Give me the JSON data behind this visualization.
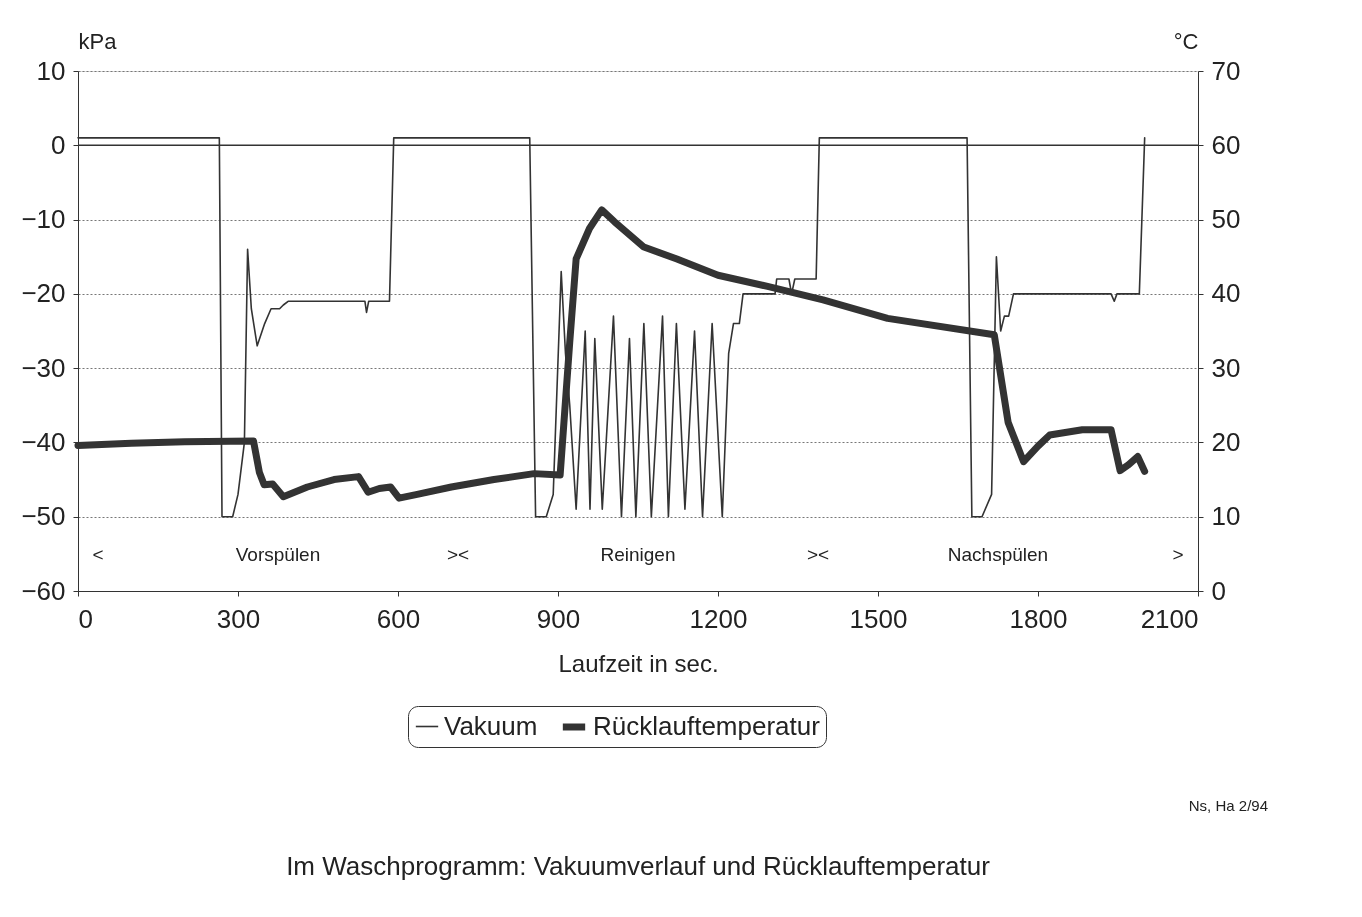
{
  "chart_data": {
    "type": "line",
    "title": "Im Waschprogramm: Vakuumverlauf und Rücklauftemperatur",
    "xlabel": "Laufzeit in sec.",
    "ylabel": "kPa",
    "y2label": "°C",
    "xlim": [
      0,
      2100
    ],
    "xticks": [
      0,
      300,
      600,
      900,
      1200,
      1500,
      1800,
      2100
    ],
    "ylim": [
      -60,
      10
    ],
    "yticks": [
      -60,
      -50,
      -40,
      -30,
      -20,
      -10,
      0,
      10
    ],
    "y2lim": [
      0,
      70
    ],
    "y2ticks": [
      0,
      10,
      20,
      30,
      40,
      50,
      60,
      70
    ],
    "grid": "y",
    "legend": "bottom",
    "marker": "none",
    "line_style": "solid",
    "ref_lines": [
      {
        "axis": "y",
        "value": 0,
        "label": null,
        "color": "#333333",
        "line_style": "solid"
      }
    ],
    "annotations": [
      "<",
      "Vorspülen",
      "><",
      "Reinigen",
      "><",
      "Nachspülen",
      ">",
      "Ns, Ha 2/94"
    ],
    "series": [
      {
        "name": "Vakuum",
        "color": "#333333",
        "axis": "y",
        "x": [
          0,
          265,
          270,
          290,
          300,
          312,
          318,
          325,
          336,
          350,
          362,
          378,
          385,
          394,
          538,
          541,
          545,
          584,
          592,
          847,
          858,
          878,
          891,
          906,
          914,
          922,
          934,
          951,
          960,
          969,
          983,
          1004,
          1019,
          1034,
          1046,
          1061,
          1075,
          1096,
          1107,
          1122,
          1138,
          1156,
          1171,
          1189,
          1208,
          1220,
          1229,
          1240,
          1247,
          1307,
          1310,
          1333,
          1338,
          1344,
          1384,
          1390,
          1667,
          1676,
          1695,
          1713,
          1722,
          1730,
          1737,
          1745,
          1754,
          1937,
          1943,
          1948,
          1990,
          2000
        ],
        "values": [
          1,
          1,
          -50,
          -50,
          -47,
          -40,
          -14,
          -22,
          -27,
          -24,
          -22,
          -22,
          -21.5,
          -21,
          -21,
          -22.5,
          -21,
          -21,
          1,
          1,
          -50,
          -50,
          -47,
          -17,
          -28,
          -35,
          -49,
          -25,
          -49,
          -26,
          -49,
          -23,
          -50,
          -26,
          -50,
          -24,
          -50,
          -23,
          -50,
          -24,
          -49,
          -25,
          -50,
          -24,
          -50,
          -28,
          -24,
          -24,
          -20,
          -20,
          -18,
          -18,
          -20,
          -18,
          -18,
          1,
          1,
          -50,
          -50,
          -47,
          -15,
          -25,
          -23,
          -23,
          -20,
          -20,
          -21,
          -20,
          -20,
          1
        ]
      },
      {
        "name": "Rücklauftemperatur",
        "color": "#333333",
        "axis": "y2",
        "x": [
          0,
          100,
          200,
          329,
          340,
          349,
          365,
          385,
          430,
          480,
          526,
          544,
          565,
          586,
          602,
          636,
          700,
          780,
          855,
          904,
          922,
          934,
          959,
          982,
          1006,
          1061,
          1123,
          1200,
          1293,
          1397,
          1518,
          1718,
          1744,
          1773,
          1800,
          1822,
          1883,
          1937,
          1954,
          1970,
          1987,
          2000
        ],
        "values": [
          19.6,
          19.9,
          20.1,
          20.2,
          16,
          14.3,
          14.4,
          12.7,
          14,
          15,
          15.4,
          13.3,
          13.8,
          14,
          12.5,
          13,
          14,
          15,
          15.8,
          15.6,
          33.5,
          44.7,
          48.8,
          51.3,
          49.7,
          46.3,
          44.7,
          42.5,
          41,
          39.2,
          36.7,
          34.5,
          22.7,
          17.4,
          19.5,
          21,
          21.7,
          21.7,
          16.2,
          17,
          18.1,
          16.1
        ]
      }
    ]
  }
}
